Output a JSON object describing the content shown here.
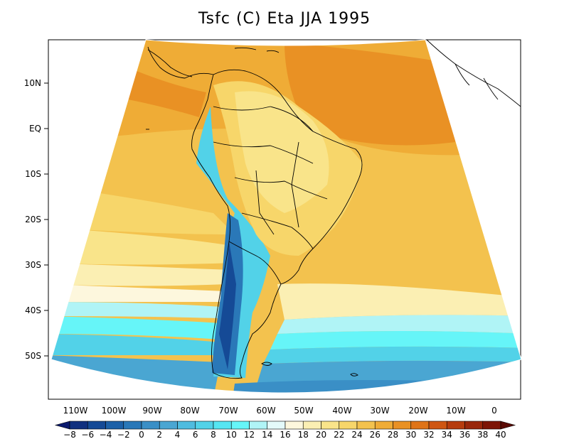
{
  "title": "Tsfc (C) Eta JJA 1995",
  "y_axis_labels": [
    "10N",
    "EQ",
    "10S",
    "20S",
    "30S",
    "40S",
    "50S"
  ],
  "x_axis_labels": [
    "110W",
    "100W",
    "90W",
    "80W",
    "70W",
    "60W",
    "50W",
    "40W",
    "30W",
    "20W",
    "10W",
    "0"
  ],
  "colorbar": {
    "labels": [
      "-8",
      "-6",
      "-4",
      "-2",
      "0",
      "2",
      "4",
      "6",
      "8",
      "10",
      "12",
      "14",
      "16",
      "18",
      "20",
      "22",
      "24",
      "26",
      "28",
      "30",
      "32",
      "34",
      "36",
      "38",
      "40"
    ],
    "colors": [
      "#0b1a6e",
      "#10307f",
      "#154a96",
      "#1d61a8",
      "#2a78b8",
      "#3a8fc6",
      "#4aa6d2",
      "#4fbcdf",
      "#52d2e8",
      "#56e6f2",
      "#66f5f8",
      "#b0f4f6",
      "#e4fafa",
      "#fdf7dd",
      "#fbefb3",
      "#f9e48a",
      "#f7d66a",
      "#f3c24e",
      "#efac36",
      "#e99124",
      "#df7418",
      "#cf5612",
      "#b63c0e",
      "#99270b",
      "#7d1506",
      "#5a0a04"
    ]
  }
}
